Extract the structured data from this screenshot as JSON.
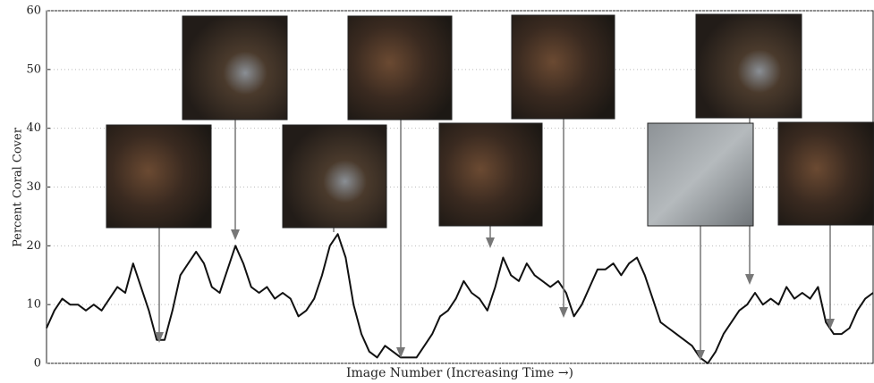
{
  "chart_data": {
    "type": "line",
    "xlabel": "Image Number (Increasing Time →)",
    "ylabel": "Percent Coral Cover",
    "ylim": [
      0,
      60
    ],
    "yticks": [
      0,
      10,
      20,
      30,
      40,
      50,
      60
    ],
    "grid": true,
    "color": "#111111",
    "values": [
      6,
      9,
      11,
      10,
      10,
      9,
      10,
      9,
      11,
      13,
      12,
      17,
      13,
      9,
      4,
      4,
      9,
      15,
      17,
      19,
      17,
      13,
      12,
      16,
      20,
      17,
      13,
      12,
      13,
      11,
      12,
      11,
      8,
      9,
      11,
      15,
      20,
      22,
      18,
      10,
      5,
      2,
      1,
      3,
      2,
      1,
      1,
      1,
      3,
      5,
      8,
      9,
      11,
      14,
      12,
      11,
      9,
      13,
      18,
      15,
      14,
      17,
      15,
      14,
      13,
      14,
      12,
      8,
      10,
      13,
      16,
      16,
      17,
      15,
      17,
      18,
      15,
      11,
      7,
      6,
      5,
      4,
      3,
      1,
      0,
      2,
      5,
      7,
      9,
      10,
      12,
      10,
      11,
      10,
      13,
      11,
      12,
      11,
      13,
      7,
      5,
      5,
      6,
      9,
      11,
      12
    ]
  }
}
